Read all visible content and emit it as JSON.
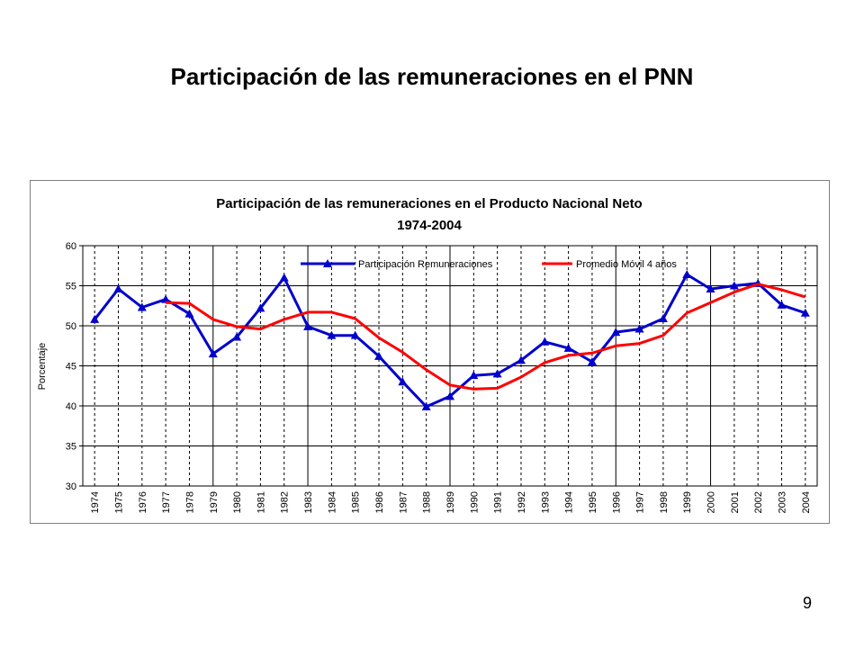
{
  "slide": {
    "title": "Participación de las remuneraciones en el PNN",
    "page_number": "9"
  },
  "chart_data": {
    "type": "line",
    "title": "Participación de las remuneraciones en el Producto Nacional Neto",
    "subtitle": "1974-2004",
    "ylabel": "Porcentaje",
    "xlabel": "",
    "ylim": [
      30,
      60
    ],
    "yticks": [
      30,
      35,
      40,
      45,
      50,
      55,
      60
    ],
    "grid": "horizontal solid, vertical dashed",
    "legend_position": "top-inside",
    "x": [
      "1974",
      "1975",
      "1976",
      "1977",
      "1978",
      "1979",
      "1980",
      "1981",
      "1982",
      "1983",
      "1984",
      "1985",
      "1986",
      "1987",
      "1988",
      "1989",
      "1990",
      "1991",
      "1992",
      "1993",
      "1994",
      "1995",
      "1996",
      "1997",
      "1998",
      "1999",
      "2000",
      "2001",
      "2002",
      "2003",
      "2004"
    ],
    "series": [
      {
        "name": "Participación Remuneraciones",
        "color": "#0000cc",
        "marker": "triangle",
        "values": [
          50.8,
          54.6,
          52.3,
          53.3,
          51.5,
          46.5,
          48.6,
          52.2,
          56.0,
          49.9,
          48.8,
          48.8,
          46.2,
          43.0,
          39.9,
          41.2,
          43.8,
          44.0,
          45.7,
          48.0,
          47.2,
          45.5,
          49.2,
          49.6,
          50.9,
          56.4,
          54.6,
          55.0,
          55.3,
          52.6,
          51.6
        ]
      },
      {
        "name": "Promedio Móvil 4 años",
        "color": "#ff0000",
        "marker": "none",
        "values": [
          null,
          null,
          null,
          52.9,
          52.8,
          50.8,
          49.9,
          49.6,
          50.8,
          51.7,
          51.7,
          50.9,
          48.5,
          46.7,
          44.5,
          42.6,
          42.1,
          42.2,
          43.6,
          45.4,
          46.3,
          46.6,
          47.5,
          47.8,
          48.8,
          51.6,
          52.9,
          54.2,
          55.2,
          54.5,
          53.6
        ]
      }
    ]
  }
}
